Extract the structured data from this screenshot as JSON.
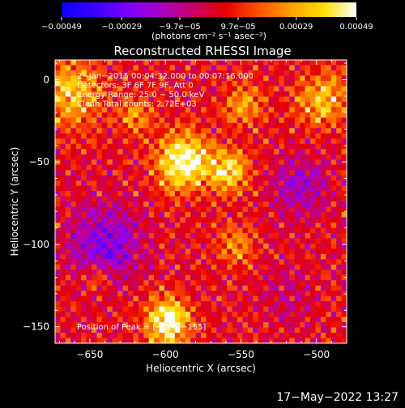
{
  "chart_data": {
    "type": "heatmap",
    "title": "Reconstructed RHESSI Image",
    "xlabel": "Heliocentric X (arcsec)",
    "ylabel": "Heliocentric Y (arcsec)",
    "xlim": [
      -673,
      -480
    ],
    "ylim": [
      -160,
      12
    ],
    "x_ticks": [
      -650,
      -600,
      -550,
      -500
    ],
    "x_tick_labels": [
      "−650",
      "−600",
      "−550",
      "−500"
    ],
    "y_ticks": [
      0,
      -50,
      -100,
      -150
    ],
    "y_tick_labels": [
      "0",
      "−50",
      "−100",
      "−150"
    ],
    "colorbar": {
      "ticks": [
        -0.00049,
        -0.00029,
        -9.7e-05,
        9.7e-05,
        0.00029,
        0.00049
      ],
      "tick_labels": [
        "−0.00049",
        "−0.00029",
        "−9.7e−05",
        "9.7e−05",
        "0.00029",
        "0.00049"
      ],
      "range": [
        -0.00049,
        0.00049
      ],
      "unit_label": "(photons cm⁻² s⁻¹ asec⁻²)",
      "colors": [
        "#0a00ff",
        "#3c00ff",
        "#7a00ff",
        "#a800c8",
        "#c8006a",
        "#e60000",
        "#ff5000",
        "#ffa000",
        "#ffe000",
        "#ffffff"
      ]
    },
    "info_lines": [
      "2−Jan−2015 00:04:32.000 to 00:07:16.000",
      "Detectors: 3F 6F 7F 9F, Att 0",
      "Energy Range: 25.0 − 50.0 keV",
      "Clean     Total counts: 2.72E+03"
    ],
    "peak_label": "Position of Peak = [−600,−155]",
    "peak_position": [
      -600,
      -155
    ],
    "grid": false,
    "sources": [
      {
        "x": -588,
        "y": -50,
        "sigma": 12,
        "amp": 0.00049
      },
      {
        "x": -598,
        "y": -147,
        "sigma": 10,
        "amp": 0.00049
      },
      {
        "x": -558,
        "y": -55,
        "sigma": 9,
        "amp": 0.00037
      },
      {
        "x": -663,
        "y": -8,
        "sigma": 14,
        "amp": 0.00032
      },
      {
        "x": -620,
        "y": -22,
        "sigma": 8,
        "amp": 0.00022
      },
      {
        "x": -495,
        "y": -12,
        "sigma": 12,
        "amp": 0.0003
      },
      {
        "x": -548,
        "y": -15,
        "sigma": 9,
        "amp": 0.00024
      },
      {
        "x": -553,
        "y": -100,
        "sigma": 9,
        "amp": 0.0002
      },
      {
        "x": -645,
        "y": -120,
        "sigma": 7,
        "amp": 0.00016
      },
      {
        "x": -640,
        "y": -100,
        "sigma": 16,
        "amp": -0.0003
      },
      {
        "x": -510,
        "y": -65,
        "sigma": 12,
        "amp": -0.00022
      },
      {
        "x": -520,
        "y": -130,
        "sigma": 12,
        "amp": -0.0001
      }
    ]
  },
  "footer": {
    "timestamp": "17−May−2022 13:27"
  }
}
